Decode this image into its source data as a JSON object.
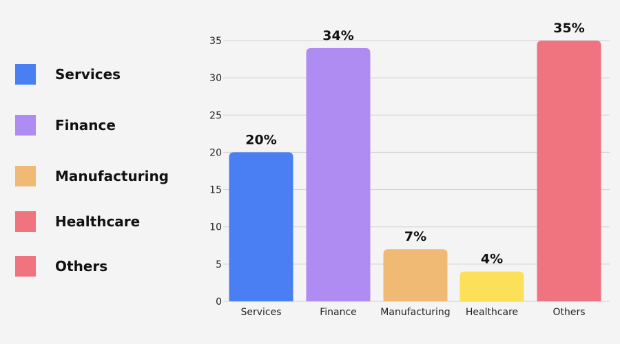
{
  "legend": [
    {
      "label": "Services",
      "color": "#4a7ff4"
    },
    {
      "label": "Finance",
      "color": "#ae8cf2"
    },
    {
      "label": "Manufacturing",
      "color": "#f1ba74"
    },
    {
      "label": "Healthcare",
      "color": "#ef7480"
    },
    {
      "label": "Others",
      "color": "#ef7480"
    }
  ],
  "chart_data": {
    "type": "bar",
    "categories": [
      "Services",
      "Finance",
      "Manufacturing",
      "Healthcare",
      "Others"
    ],
    "values": [
      20,
      34,
      7,
      4,
      35
    ],
    "data_labels": [
      "20%",
      "34%",
      "7%",
      "4%",
      "35%"
    ],
    "colors": [
      "#4a7ff4",
      "#ae8cf2",
      "#f1ba74",
      "#fde05a",
      "#ef7480"
    ],
    "yticks": [
      "0",
      "5",
      "10",
      "15",
      "20",
      "25",
      "30",
      "35"
    ],
    "ylim": [
      0,
      35
    ],
    "grid": true,
    "legend_position": "left"
  }
}
